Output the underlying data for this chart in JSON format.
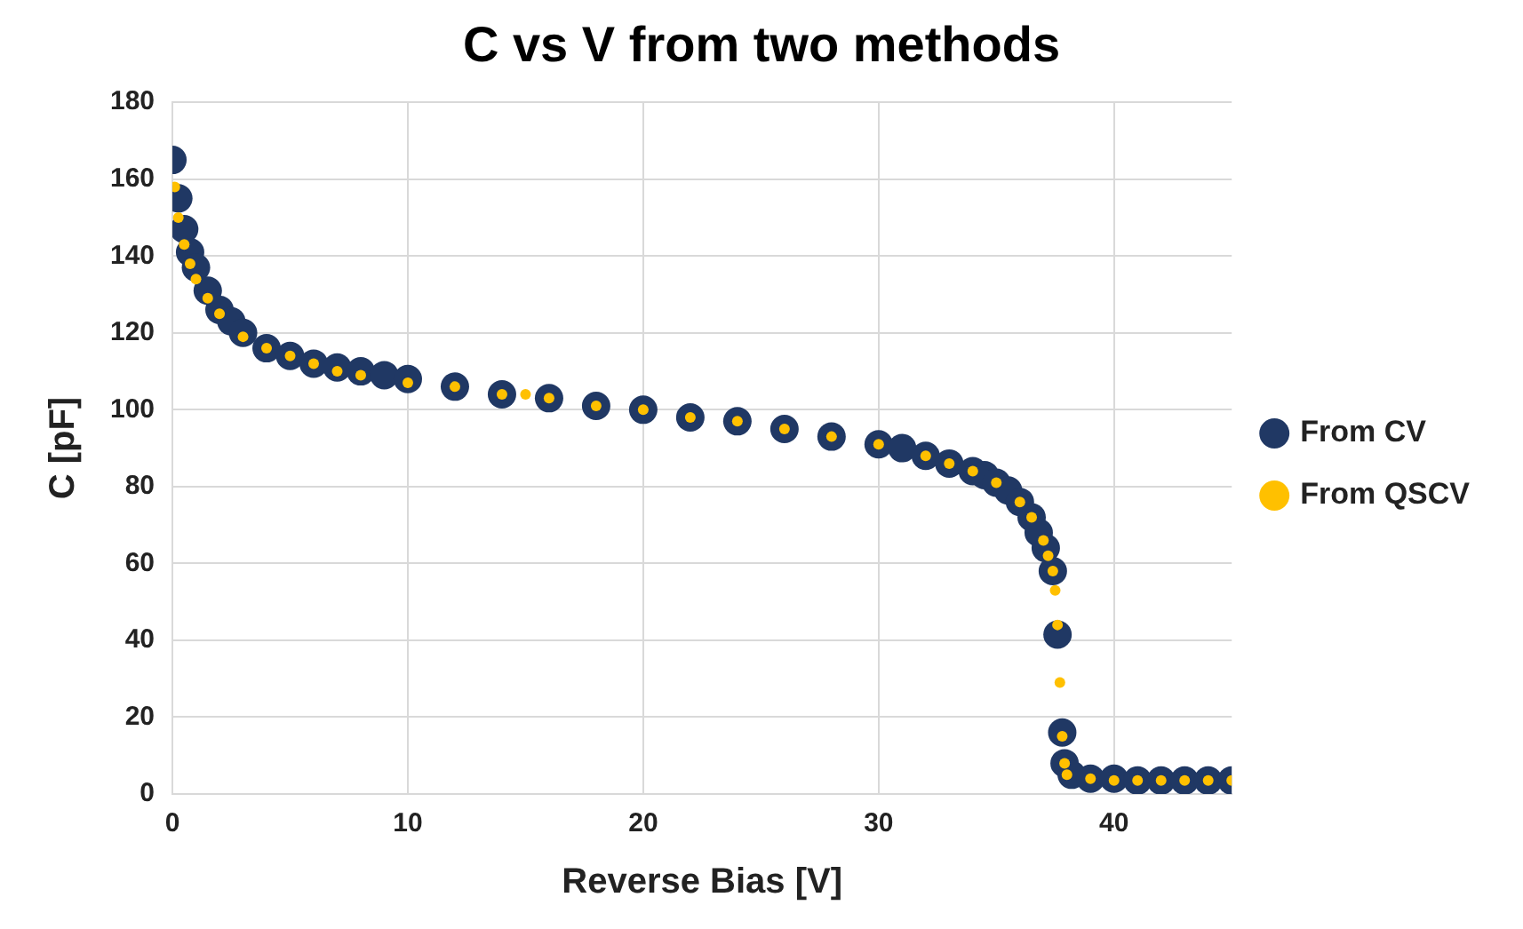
{
  "chart_data": {
    "type": "scatter",
    "title": "C vs V from two methods",
    "xlabel": "Reverse Bias [V]",
    "ylabel": "C [pF]",
    "xlim": [
      0,
      45
    ],
    "xticks": [
      0,
      10,
      20,
      30,
      40
    ],
    "ylim": [
      0,
      180
    ],
    "yticks": [
      0,
      20,
      40,
      60,
      80,
      100,
      120,
      140,
      160,
      180
    ],
    "grid": true,
    "legend": "right",
    "marker": "circle",
    "series": [
      {
        "name": "From CV",
        "color": "#203864",
        "x": [
          0,
          0.25,
          0.5,
          0.75,
          1,
          1.5,
          2,
          2.5,
          3,
          4,
          5,
          6,
          7,
          8,
          9,
          10,
          12,
          14,
          16,
          18,
          20,
          22,
          24,
          26,
          28,
          30,
          31,
          32,
          33,
          34,
          34.5,
          35,
          35.5,
          36,
          36.5,
          36.8,
          37.1,
          37.4,
          37.6,
          37.8,
          37.9,
          38.2,
          39,
          40,
          41,
          42,
          43,
          44,
          45
        ],
        "values": [
          165,
          155,
          147,
          141,
          137,
          131,
          126,
          123,
          120,
          116,
          114,
          112,
          111,
          110,
          109,
          108,
          106,
          104,
          103,
          101,
          100,
          98,
          97,
          95,
          93,
          91,
          90,
          88,
          86,
          84,
          83,
          81,
          79,
          76,
          72,
          68,
          64,
          58,
          41.5,
          16,
          8,
          5,
          4,
          4,
          3.5,
          3.5,
          3.5,
          3.5,
          3.5
        ]
      },
      {
        "name": "From QSCV",
        "color": "#ffc000",
        "x": [
          0.1,
          0.25,
          0.5,
          0.75,
          1,
          1.5,
          2,
          3,
          4,
          5,
          6,
          7,
          8,
          10,
          12,
          14,
          15,
          16,
          18,
          20,
          22,
          24,
          26,
          28,
          30,
          32,
          33,
          34,
          35,
          36,
          36.5,
          37,
          37.2,
          37.4,
          37.5,
          37.6,
          37.7,
          37.8,
          37.9,
          38,
          39,
          40,
          41,
          42,
          43,
          44,
          45
        ],
        "values": [
          158,
          150,
          143,
          138,
          134,
          129,
          125,
          119,
          116,
          114,
          112,
          110,
          109,
          107,
          106,
          104,
          104,
          103,
          101,
          100,
          98,
          97,
          95,
          93,
          91,
          88,
          86,
          84,
          81,
          76,
          72,
          66,
          62,
          58,
          53,
          44,
          29,
          15,
          8,
          5,
          4,
          3.5,
          3.5,
          3.5,
          3.5,
          3.5,
          3.5
        ]
      }
    ]
  }
}
